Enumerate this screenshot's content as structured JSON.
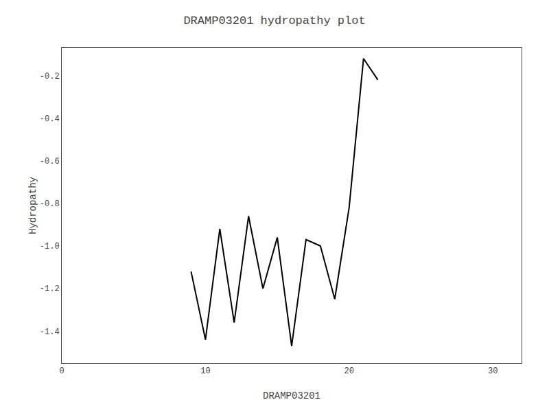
{
  "chart_data": {
    "type": "line",
    "title": "DRAMP03201 hydropathy plot",
    "xlabel": "DRAMP03201",
    "ylabel": "Hydropathy",
    "x": [
      9,
      10,
      11,
      12,
      13,
      14,
      15,
      16,
      17,
      18,
      19,
      20,
      21,
      22
    ],
    "values": [
      -1.12,
      -1.44,
      -0.92,
      -1.36,
      -0.86,
      -1.2,
      -0.96,
      -1.47,
      -0.97,
      -1.0,
      -1.25,
      -0.82,
      -0.12,
      -0.22
    ],
    "color": "#000000",
    "xlim": [
      0,
      32
    ],
    "xticks": [
      0,
      10,
      20,
      30
    ],
    "ylim": [
      -1.55,
      -0.07
    ],
    "yticks": [
      -1.4,
      -1.2,
      {
        "value": -1.0,
        "label": "-1.0"
      },
      -0.8,
      -0.6,
      -0.4,
      -0.2
    ],
    "grid": false
  }
}
